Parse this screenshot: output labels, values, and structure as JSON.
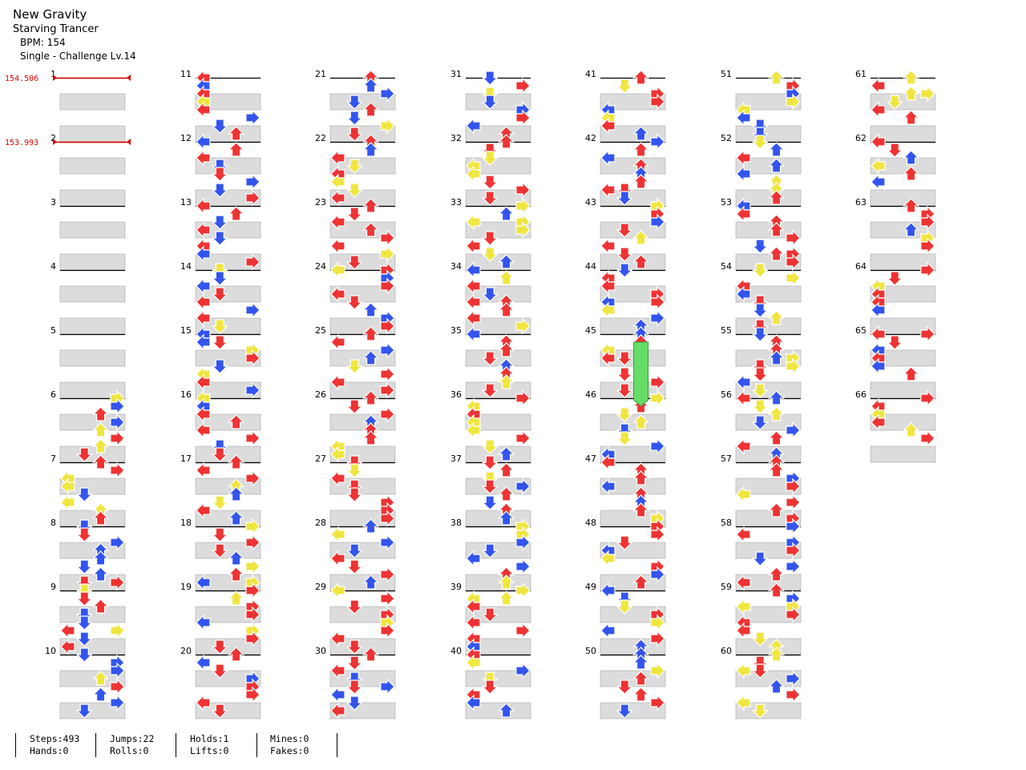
{
  "header": {
    "title": "New Gravity",
    "artist": "Starving Trancer",
    "bpm": "BPM: 154",
    "difficulty": "Single - Challenge  Lv.14"
  },
  "bpm_changes": [
    {
      "measure": 1,
      "label": "154.506"
    },
    {
      "measure": 2,
      "label": "153.993"
    }
  ],
  "measures": [
    "1",
    "2",
    "3",
    "4",
    "5",
    "6",
    "7",
    "8",
    "9",
    "10",
    "11",
    "12",
    "13",
    "14",
    "15",
    "16",
    "17",
    "18",
    "19",
    "20",
    "21",
    "22",
    "23",
    "24",
    "25",
    "26",
    "27",
    "28",
    "29",
    "30",
    "31",
    "32",
    "33",
    "34",
    "35",
    "36",
    "37",
    "38",
    "39",
    "40",
    "41",
    "42",
    "43",
    "44",
    "45",
    "46",
    "47",
    "48",
    "49",
    "50",
    "51",
    "52",
    "53",
    "54",
    "55",
    "56",
    "57",
    "58",
    "59",
    "60",
    "61",
    "62",
    "63",
    "64",
    "65",
    "66"
  ],
  "stats": {
    "steps": "Steps:493",
    "hands": "Hands:0",
    "jumps": "Jumps:22",
    "rolls": "Rolls:0",
    "holds": "Holds:1",
    "lifts": "Lifts:0",
    "mines": "Mines:0",
    "fakes": "Fakes:0"
  },
  "colors": {
    "red": "#ee3333",
    "blue": "#3355ee",
    "yellow": "#f0e640",
    "hold": "#66dd66",
    "bpm_line": "#dd0000"
  }
}
